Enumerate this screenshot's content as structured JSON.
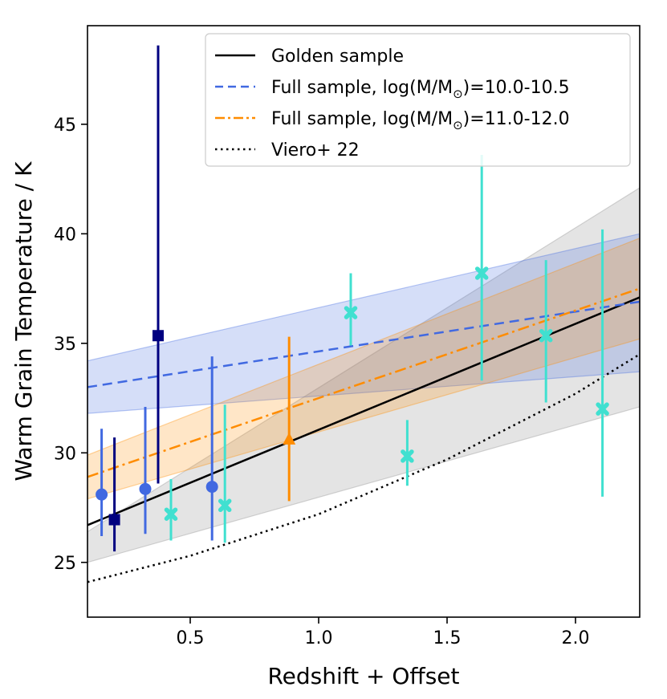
{
  "chart_data": {
    "type": "scatter",
    "xlabel": "Redshift + Offset",
    "ylabel": "Warm Grain Temperature / K",
    "xlim": [
      0.1,
      2.25
    ],
    "ylim": [
      22.5,
      49.5
    ],
    "xticks": [
      0.5,
      1.0,
      1.5,
      2.0
    ],
    "xtick_labels": [
      "0.5",
      "1.0",
      "1.5",
      "2.0"
    ],
    "yticks": [
      25,
      30,
      35,
      40,
      45
    ],
    "ytick_labels": [
      "25",
      "30",
      "35",
      "40",
      "45"
    ],
    "legend": {
      "position": "top-right",
      "entries": [
        {
          "label": "Golden sample",
          "color": "#000000",
          "style": "solid"
        },
        {
          "label": "Full sample, log(M/M",
          "sub": "⊙",
          "tail": ")=10.0-10.5",
          "color": "#4169e1",
          "style": "dashed"
        },
        {
          "label": "Full sample, log(M/M",
          "sub": "⊙",
          "tail": ")=11.0-12.0",
          "color": "#ff8c00",
          "style": "dashdot"
        },
        {
          "label": "Viero+ 22",
          "color": "#000000",
          "style": "dotted"
        }
      ]
    },
    "bands": [
      {
        "name": "golden-band",
        "color": "#9e9e9e",
        "opacity": 0.28,
        "x": [
          0.1,
          2.25
        ],
        "upper": [
          26.4,
          42.1
        ],
        "lower": [
          25.0,
          32.1
        ]
      },
      {
        "name": "low-mass-band",
        "color": "#4169e1",
        "opacity": 0.22,
        "x": [
          0.1,
          2.25
        ],
        "upper": [
          34.2,
          40.0
        ],
        "lower": [
          31.8,
          33.7
        ]
      },
      {
        "name": "high-mass-band",
        "color": "#ff8c00",
        "opacity": 0.22,
        "x": [
          0.1,
          2.25
        ],
        "upper": [
          29.9,
          39.8
        ],
        "lower": [
          27.9,
          35.2
        ]
      }
    ],
    "lines": [
      {
        "name": "golden-sample-line",
        "color": "#000000",
        "dash": "",
        "width": 2.5,
        "x": [
          0.1,
          2.25
        ],
        "y": [
          26.7,
          37.1
        ]
      },
      {
        "name": "low-mass-line",
        "color": "#4169e1",
        "dash": "12,7",
        "width": 2.5,
        "x": [
          0.1,
          2.25
        ],
        "y": [
          33.0,
          36.9
        ]
      },
      {
        "name": "high-mass-line",
        "color": "#ff8c00",
        "dash": "14,5,3,5",
        "width": 2.5,
        "x": [
          0.1,
          2.25
        ],
        "y": [
          28.9,
          37.5
        ]
      },
      {
        "name": "viero-line",
        "color": "#000000",
        "dash": "2.5,4.5",
        "width": 2.5,
        "x": [
          0.1,
          0.5,
          1.0,
          1.5,
          2.0,
          2.25
        ],
        "y": [
          24.1,
          25.3,
          27.2,
          29.7,
          32.7,
          34.5
        ]
      }
    ],
    "series": [
      {
        "name": "low-mass-points",
        "marker": "circle",
        "color": "#4169e1",
        "errcolor": "#4169e1",
        "points": [
          {
            "x": 0.155,
            "y": 28.1,
            "lo": 26.2,
            "hi": 31.1
          },
          {
            "x": 0.325,
            "y": 28.35,
            "lo": 26.3,
            "hi": 32.1
          },
          {
            "x": 0.585,
            "y": 28.45,
            "lo": 26.0,
            "hi": 34.4
          }
        ]
      },
      {
        "name": "mid-mass-points",
        "marker": "square",
        "color": "#000080",
        "errcolor": "#000080",
        "points": [
          {
            "x": 0.205,
            "y": 26.95,
            "lo": 25.5,
            "hi": 30.7
          },
          {
            "x": 0.375,
            "y": 35.35,
            "lo": 28.6,
            "hi": 48.6
          }
        ]
      },
      {
        "name": "high-mass-points",
        "marker": "triangle",
        "color": "#ff8c00",
        "errcolor": "#ff8c00",
        "points": [
          {
            "x": 0.885,
            "y": 30.6,
            "lo": 27.8,
            "hi": 35.3
          }
        ]
      },
      {
        "name": "highest-mass-points",
        "marker": "x",
        "color": "#40e0d0",
        "errcolor": "#40e0d0",
        "points": [
          {
            "x": 0.425,
            "y": 27.2,
            "lo": 26.0,
            "hi": 28.8
          },
          {
            "x": 0.635,
            "y": 27.6,
            "lo": 25.9,
            "hi": 32.2
          },
          {
            "x": 1.125,
            "y": 36.4,
            "lo": 34.9,
            "hi": 38.2
          },
          {
            "x": 1.345,
            "y": 29.85,
            "lo": 28.5,
            "hi": 31.5
          },
          {
            "x": 1.635,
            "y": 38.2,
            "lo": 33.3,
            "hi": 43.6
          },
          {
            "x": 1.885,
            "y": 35.35,
            "lo": 32.3,
            "hi": 38.8
          },
          {
            "x": 2.105,
            "y": 32.0,
            "lo": 28.0,
            "hi": 40.2
          }
        ]
      }
    ]
  }
}
